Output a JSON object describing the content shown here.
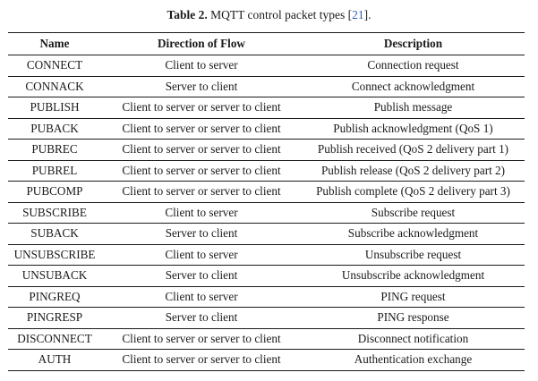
{
  "caption": {
    "label": "Table 2.",
    "text": " MQTT control packet types [",
    "ref": "21",
    "tail": "]."
  },
  "table": {
    "headers": [
      "Name",
      "Direction of Flow",
      "Description"
    ],
    "rows": [
      [
        "CONNECT",
        "Client to server",
        "Connection request"
      ],
      [
        "CONNACK",
        "Server to client",
        "Connect acknowledgment"
      ],
      [
        "PUBLISH",
        "Client to server or server to client",
        "Publish message"
      ],
      [
        "PUBACK",
        "Client to server or server to client",
        "Publish acknowledgment (QoS 1)"
      ],
      [
        "PUBREC",
        "Client to server or server to client",
        "Publish received (QoS 2 delivery part 1)"
      ],
      [
        "PUBREL",
        "Client to server or server to client",
        "Publish release (QoS 2 delivery part 2)"
      ],
      [
        "PUBCOMP",
        "Client to server or server to client",
        "Publish complete (QoS 2 delivery part 3)"
      ],
      [
        "SUBSCRIBE",
        "Client to server",
        "Subscribe request"
      ],
      [
        "SUBACK",
        "Server to client",
        "Subscribe acknowledgment"
      ],
      [
        "UNSUBSCRIBE",
        "Client to server",
        "Unsubscribe request"
      ],
      [
        "UNSUBACK",
        "Server to client",
        "Unsubscribe acknowledgment"
      ],
      [
        "PINGREQ",
        "Client to server",
        "PING request"
      ],
      [
        "PINGRESP",
        "Server to client",
        "PING response"
      ],
      [
        "DISCONNECT",
        "Client to server or server to client",
        "Disconnect notification"
      ],
      [
        "AUTH",
        "Client to server or server to client",
        "Authentication exchange"
      ]
    ]
  },
  "colors": {
    "text": "#1a1a1a",
    "reference_link": "#2a62b8"
  }
}
